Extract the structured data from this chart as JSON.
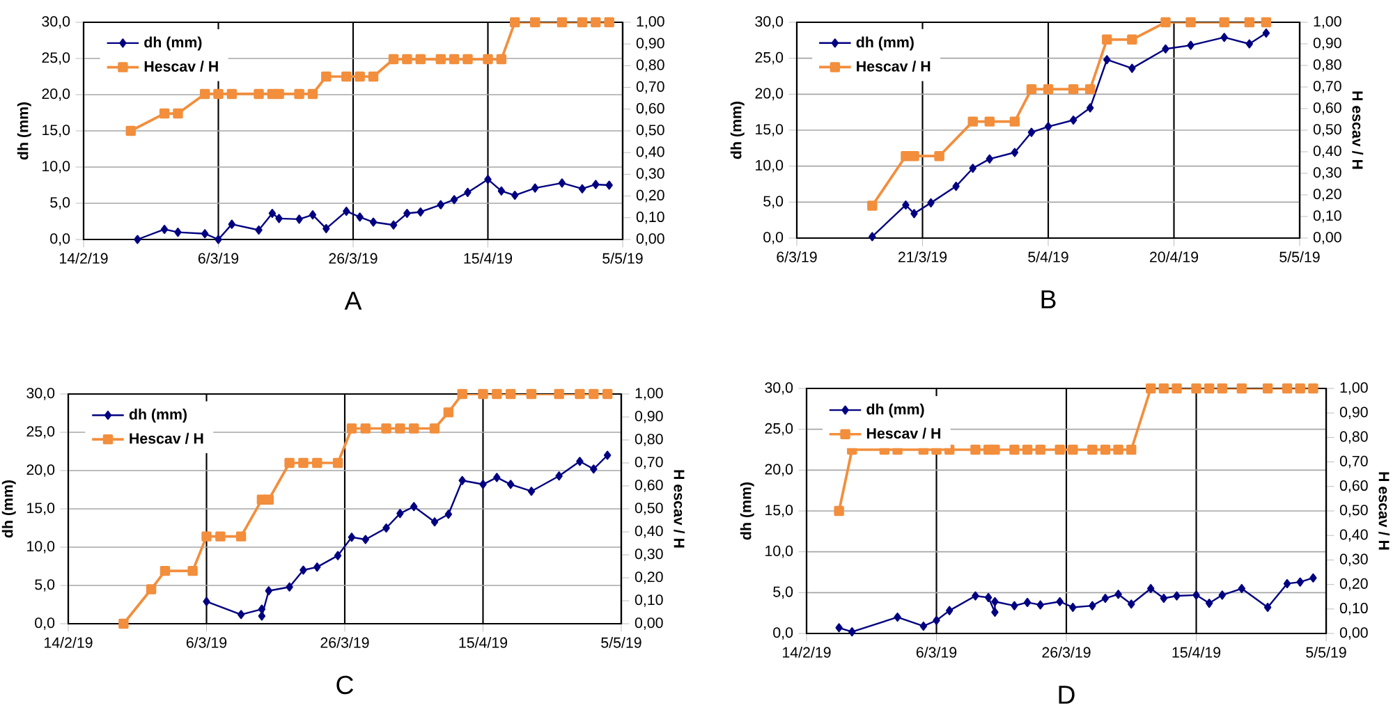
{
  "chart_data": [
    {
      "type": "line",
      "annotations": [
        "A"
      ],
      "ylabel": "dh (mm)",
      "xlim": [
        "2019-02-14",
        "2019-05-05"
      ],
      "xticks": [
        {
          "value": "2019-02-14",
          "label": "14/2/19"
        },
        {
          "value": "2019-03-06",
          "label": "6/3/19"
        },
        {
          "value": "2019-03-26",
          "label": "26/3/19"
        },
        {
          "value": "2019-04-15",
          "label": "15/4/19"
        },
        {
          "value": "2019-05-05",
          "label": "5/5/19"
        }
      ],
      "ylim": [
        0,
        30
      ],
      "yticks": [
        {
          "value": 0,
          "label": "0,0"
        },
        {
          "value": 5,
          "label": "5,0"
        },
        {
          "value": 10,
          "label": "10,0"
        },
        {
          "value": 15,
          "label": "15,0"
        },
        {
          "value": 20,
          "label": "20,0"
        },
        {
          "value": 25,
          "label": "25,0"
        },
        {
          "value": 30,
          "label": "30,0"
        }
      ],
      "y2lim": [
        0,
        1
      ],
      "y2ticks": [
        {
          "value": 0,
          "label": "0,00"
        },
        {
          "value": 0.1,
          "label": "0,10"
        },
        {
          "value": 0.2,
          "label": "0,20"
        },
        {
          "value": 0.3,
          "label": "0,30"
        },
        {
          "value": 0.4,
          "label": "0,40"
        },
        {
          "value": 0.5,
          "label": "0,50"
        },
        {
          "value": 0.6,
          "label": "0,60"
        },
        {
          "value": 0.7,
          "label": "0,70"
        },
        {
          "value": 0.8,
          "label": "0,80"
        },
        {
          "value": 0.9,
          "label": "0,90"
        },
        {
          "value": 1,
          "label": "1,00"
        }
      ],
      "grid": true,
      "legend": "top left",
      "series": [
        {
          "name": "dh (mm)",
          "color": "#000080",
          "marker": "diamond",
          "x": [
            "2019-02-22",
            "2019-02-26",
            "2019-02-28",
            "2019-03-04",
            "2019-03-06",
            "2019-03-08",
            "2019-03-12",
            "2019-03-14",
            "2019-03-15",
            "2019-03-18",
            "2019-03-20",
            "2019-03-22",
            "2019-03-25",
            "2019-03-27",
            "2019-03-29",
            "2019-04-01",
            "2019-04-03",
            "2019-04-05",
            "2019-04-08",
            "2019-04-10",
            "2019-04-12",
            "2019-04-15",
            "2019-04-17",
            "2019-04-19",
            "2019-04-22",
            "2019-04-26",
            "2019-04-29",
            "2019-05-01",
            "2019-05-03"
          ],
          "values": [
            0,
            1.4,
            1.0,
            0.8,
            0,
            2.1,
            1.3,
            3.6,
            2.9,
            2.8,
            3.4,
            1.5,
            3.9,
            3.1,
            2.4,
            2.0,
            3.6,
            3.8,
            4.8,
            5.5,
            6.5,
            8.3,
            6.7,
            6.1,
            7.1,
            7.8,
            7.0,
            7.6,
            7.5
          ]
        },
        {
          "name": "Hescav / H",
          "color": "#f28e3c",
          "marker": "square",
          "axis": "y2",
          "x": [
            "2019-02-21",
            "2019-02-26",
            "2019-02-28",
            "2019-03-04",
            "2019-03-06",
            "2019-03-08",
            "2019-03-12",
            "2019-03-14",
            "2019-03-15",
            "2019-03-18",
            "2019-03-20",
            "2019-03-22",
            "2019-03-25",
            "2019-03-27",
            "2019-03-29",
            "2019-04-01",
            "2019-04-03",
            "2019-04-05",
            "2019-04-08",
            "2019-04-10",
            "2019-04-12",
            "2019-04-15",
            "2019-04-17",
            "2019-04-19",
            "2019-04-22",
            "2019-04-26",
            "2019-04-29",
            "2019-05-01",
            "2019-05-03"
          ],
          "values": [
            0.5,
            0.58,
            0.58,
            0.67,
            0.67,
            0.67,
            0.67,
            0.67,
            0.67,
            0.67,
            0.67,
            0.75,
            0.75,
            0.75,
            0.75,
            0.83,
            0.83,
            0.83,
            0.83,
            0.83,
            0.83,
            0.83,
            0.83,
            1,
            1,
            1,
            1,
            1,
            1
          ]
        }
      ]
    },
    {
      "type": "line",
      "annotations": [
        "B"
      ],
      "ylabel": "dh (mm)",
      "y2label": "H escav / H",
      "xlim": [
        "2019-03-06",
        "2019-05-05"
      ],
      "xticks": [
        {
          "value": "2019-03-06",
          "label": "6/3/19"
        },
        {
          "value": "2019-03-21",
          "label": "21/3/19"
        },
        {
          "value": "2019-04-05",
          "label": "5/4/19"
        },
        {
          "value": "2019-04-20",
          "label": "20/4/19"
        },
        {
          "value": "2019-05-05",
          "label": "5/5/19"
        }
      ],
      "ylim": [
        0,
        30
      ],
      "yticks": [
        {
          "value": 0,
          "label": "0,0"
        },
        {
          "value": 5,
          "label": "5,0"
        },
        {
          "value": 10,
          "label": "10,0"
        },
        {
          "value": 15,
          "label": "15,0"
        },
        {
          "value": 20,
          "label": "20,0"
        },
        {
          "value": 25,
          "label": "25,0"
        },
        {
          "value": 30,
          "label": "30,0"
        }
      ],
      "y2lim": [
        0,
        1
      ],
      "y2ticks": [
        {
          "value": 0,
          "label": "0,00"
        },
        {
          "value": 0.1,
          "label": "0,10"
        },
        {
          "value": 0.2,
          "label": "0,20"
        },
        {
          "value": 0.3,
          "label": "0,30"
        },
        {
          "value": 0.4,
          "label": "0,40"
        },
        {
          "value": 0.5,
          "label": "0,50"
        },
        {
          "value": 0.6,
          "label": "0,60"
        },
        {
          "value": 0.7,
          "label": "0,70"
        },
        {
          "value": 0.8,
          "label": "0,80"
        },
        {
          "value": 0.9,
          "label": "0,90"
        },
        {
          "value": 1,
          "label": "1,00"
        }
      ],
      "grid": true,
      "legend": "top left",
      "series": [
        {
          "name": "dh (mm)",
          "color": "#000080",
          "marker": "diamond",
          "x": [
            "2019-03-15",
            "2019-03-19",
            "2019-03-20",
            "2019-03-22",
            "2019-03-25",
            "2019-03-27",
            "2019-03-29",
            "2019-04-01",
            "2019-04-03",
            "2019-04-05",
            "2019-04-08",
            "2019-04-10",
            "2019-04-12",
            "2019-04-15",
            "2019-04-19",
            "2019-04-22",
            "2019-04-26",
            "2019-04-29",
            "2019-05-01"
          ],
          "values": [
            0.2,
            4.6,
            3.4,
            4.9,
            7.2,
            9.7,
            11.0,
            11.9,
            14.7,
            15.5,
            16.4,
            18.1,
            24.8,
            23.6,
            26.3,
            26.8,
            27.9,
            27.0,
            28.5
          ]
        },
        {
          "name": "Hescav / H",
          "color": "#f28e3c",
          "marker": "square",
          "axis": "y2",
          "x": [
            "2019-03-15",
            "2019-03-19",
            "2019-03-20",
            "2019-03-23",
            "2019-03-27",
            "2019-03-29",
            "2019-04-01",
            "2019-04-03",
            "2019-04-05",
            "2019-04-08",
            "2019-04-10",
            "2019-04-12",
            "2019-04-15",
            "2019-04-19",
            "2019-04-22",
            "2019-04-26",
            "2019-04-29",
            "2019-05-01"
          ],
          "values": [
            0.15,
            0.38,
            0.38,
            0.38,
            0.54,
            0.54,
            0.54,
            0.69,
            0.69,
            0.69,
            0.69,
            0.92,
            0.92,
            1,
            1,
            1,
            1,
            1
          ]
        }
      ]
    },
    {
      "type": "line",
      "annotations": [
        "C"
      ],
      "ylabel": "dh (mm)",
      "y2label": "H escav / H",
      "xlim": [
        "2019-02-14",
        "2019-05-05"
      ],
      "xticks": [
        {
          "value": "2019-02-14",
          "label": "14/2/19"
        },
        {
          "value": "2019-03-06",
          "label": "6/3/19"
        },
        {
          "value": "2019-03-26",
          "label": "26/3/19"
        },
        {
          "value": "2019-04-15",
          "label": "15/4/19"
        },
        {
          "value": "2019-05-05",
          "label": "5/5/19"
        }
      ],
      "ylim": [
        0,
        30
      ],
      "yticks": [
        {
          "value": 0,
          "label": "0,0"
        },
        {
          "value": 5,
          "label": "5,0"
        },
        {
          "value": 10,
          "label": "10,0"
        },
        {
          "value": 15,
          "label": "15,0"
        },
        {
          "value": 20,
          "label": "20,0"
        },
        {
          "value": 25,
          "label": "25,0"
        },
        {
          "value": 30,
          "label": "30,0"
        }
      ],
      "y2lim": [
        0,
        1
      ],
      "y2ticks": [
        {
          "value": 0,
          "label": "0,00"
        },
        {
          "value": 0.1,
          "label": "0,10"
        },
        {
          "value": 0.2,
          "label": "0,20"
        },
        {
          "value": 0.3,
          "label": "0,30"
        },
        {
          "value": 0.4,
          "label": "0,40"
        },
        {
          "value": 0.5,
          "label": "0,50"
        },
        {
          "value": 0.6,
          "label": "0,60"
        },
        {
          "value": 0.7,
          "label": "0,70"
        },
        {
          "value": 0.8,
          "label": "0,80"
        },
        {
          "value": 0.9,
          "label": "0,90"
        },
        {
          "value": 1,
          "label": "1,00"
        }
      ],
      "grid": true,
      "legend": "top left",
      "series": [
        {
          "name": "dh (mm)",
          "color": "#000080",
          "marker": "diamond",
          "x": [
            "2019-03-06",
            "2019-03-11",
            "2019-03-14",
            "2019-03-14",
            "2019-03-15",
            "2019-03-18",
            "2019-03-20",
            "2019-03-22",
            "2019-03-25",
            "2019-03-27",
            "2019-03-29",
            "2019-04-01",
            "2019-04-03",
            "2019-04-05",
            "2019-04-08",
            "2019-04-10",
            "2019-04-12",
            "2019-04-15",
            "2019-04-17",
            "2019-04-19",
            "2019-04-22",
            "2019-04-26",
            "2019-04-29",
            "2019-05-01",
            "2019-05-03"
          ],
          "values": [
            2.9,
            1.2,
            1.9,
            1.0,
            4.3,
            4.8,
            7.0,
            7.4,
            8.9,
            11.3,
            11.0,
            12.5,
            14.4,
            15.3,
            13.3,
            14.3,
            18.7,
            18.2,
            19.1,
            18.2,
            17.3,
            19.3,
            21.2,
            20.2,
            22.0
          ]
        },
        {
          "name": "Hescav / H",
          "color": "#f28e3c",
          "marker": "square",
          "axis": "y2",
          "x": [
            "2019-02-22",
            "2019-02-26",
            "2019-02-28",
            "2019-03-04",
            "2019-03-06",
            "2019-03-08",
            "2019-03-11",
            "2019-03-14",
            "2019-03-15",
            "2019-03-18",
            "2019-03-20",
            "2019-03-22",
            "2019-03-25",
            "2019-03-27",
            "2019-03-29",
            "2019-04-01",
            "2019-04-03",
            "2019-04-05",
            "2019-04-08",
            "2019-04-10",
            "2019-04-12",
            "2019-04-15",
            "2019-04-17",
            "2019-04-19",
            "2019-04-22",
            "2019-04-26",
            "2019-04-29",
            "2019-05-01",
            "2019-05-03"
          ],
          "values": [
            0,
            0.15,
            0.23,
            0.23,
            0.38,
            0.38,
            0.38,
            0.54,
            0.54,
            0.7,
            0.7,
            0.7,
            0.7,
            0.85,
            0.85,
            0.85,
            0.85,
            0.85,
            0.85,
            0.92,
            1,
            1,
            1,
            1,
            1,
            1,
            1,
            1,
            1
          ]
        }
      ]
    },
    {
      "type": "line",
      "annotations": [
        "D"
      ],
      "ylabel": "dh (mm)",
      "y2label": "H escav / H",
      "xlim": [
        "2019-02-14",
        "2019-05-05"
      ],
      "xticks": [
        {
          "value": "2019-02-14",
          "label": "14/2/19"
        },
        {
          "value": "2019-03-06",
          "label": "6/3/19"
        },
        {
          "value": "2019-03-26",
          "label": "26/3/19"
        },
        {
          "value": "2019-04-15",
          "label": "15/4/19"
        },
        {
          "value": "2019-05-05",
          "label": "5/5/19"
        }
      ],
      "ylim": [
        0,
        30
      ],
      "yticks": [
        {
          "value": 0,
          "label": "0,0"
        },
        {
          "value": 5,
          "label": "5,0"
        },
        {
          "value": 10,
          "label": "10,0"
        },
        {
          "value": 15,
          "label": "15,0"
        },
        {
          "value": 20,
          "label": "20,0"
        },
        {
          "value": 25,
          "label": "25,0"
        },
        {
          "value": 30,
          "label": "30,0"
        }
      ],
      "y2lim": [
        0,
        1
      ],
      "y2ticks": [
        {
          "value": 0,
          "label": "0,00"
        },
        {
          "value": 0.1,
          "label": "0,10"
        },
        {
          "value": 0.2,
          "label": "0,20"
        },
        {
          "value": 0.3,
          "label": "0,30"
        },
        {
          "value": 0.4,
          "label": "0,40"
        },
        {
          "value": 0.5,
          "label": "0,50"
        },
        {
          "value": 0.6,
          "label": "0,60"
        },
        {
          "value": 0.7,
          "label": "0,70"
        },
        {
          "value": 0.8,
          "label": "0,80"
        },
        {
          "value": 0.9,
          "label": "0,90"
        },
        {
          "value": 1,
          "label": "1,00"
        }
      ],
      "grid": true,
      "legend": "top left",
      "series": [
        {
          "name": "dh (mm)",
          "color": "#000080",
          "marker": "diamond",
          "x": [
            "2019-02-19",
            "2019-02-21",
            "2019-02-28",
            "2019-03-04",
            "2019-03-06",
            "2019-03-08",
            "2019-03-12",
            "2019-03-14",
            "2019-03-15",
            "2019-03-15",
            "2019-03-18",
            "2019-03-20",
            "2019-03-22",
            "2019-03-25",
            "2019-03-27",
            "2019-03-30",
            "2019-04-01",
            "2019-04-03",
            "2019-04-05",
            "2019-04-08",
            "2019-04-10",
            "2019-04-12",
            "2019-04-15",
            "2019-04-17",
            "2019-04-19",
            "2019-04-22",
            "2019-04-26",
            "2019-04-29",
            "2019-05-01",
            "2019-05-03"
          ],
          "values": [
            0.7,
            0.2,
            2.0,
            0.9,
            1.6,
            2.8,
            4.6,
            4.4,
            2.6,
            3.9,
            3.4,
            3.8,
            3.5,
            3.9,
            3.2,
            3.4,
            4.3,
            4.8,
            3.6,
            5.5,
            4.3,
            4.6,
            4.7,
            3.7,
            4.7,
            5.5,
            3.2,
            6.1,
            6.3,
            6.8
          ]
        },
        {
          "name": "Hescav / H",
          "color": "#f28e3c",
          "marker": "square",
          "axis": "y2",
          "x": [
            "2019-02-19",
            "2019-02-21",
            "2019-02-26",
            "2019-02-28",
            "2019-03-04",
            "2019-03-06",
            "2019-03-08",
            "2019-03-12",
            "2019-03-14",
            "2019-03-15",
            "2019-03-18",
            "2019-03-20",
            "2019-03-22",
            "2019-03-25",
            "2019-03-27",
            "2019-03-30",
            "2019-04-01",
            "2019-04-03",
            "2019-04-05",
            "2019-04-08",
            "2019-04-10",
            "2019-04-12",
            "2019-04-15",
            "2019-04-17",
            "2019-04-19",
            "2019-04-22",
            "2019-04-26",
            "2019-04-29",
            "2019-05-01",
            "2019-05-03"
          ],
          "values": [
            0.5,
            0.75,
            0.75,
            0.75,
            0.75,
            0.75,
            0.75,
            0.75,
            0.75,
            0.75,
            0.75,
            0.75,
            0.75,
            0.75,
            0.75,
            0.75,
            0.75,
            0.75,
            0.75,
            1,
            1,
            1,
            1,
            1,
            1,
            1,
            1,
            1,
            1,
            1
          ]
        }
      ]
    }
  ]
}
